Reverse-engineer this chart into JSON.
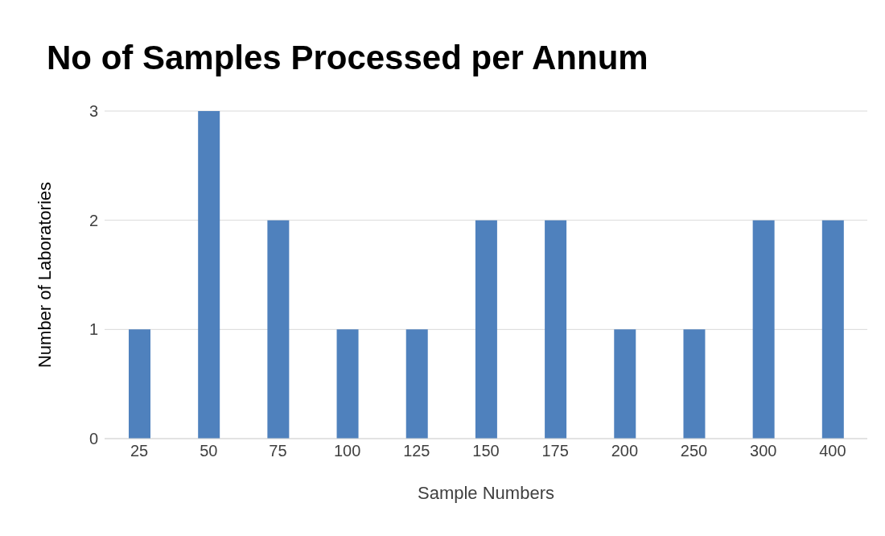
{
  "chart_data": {
    "type": "bar",
    "title": "No of Samples Processed per Annum",
    "xlabel": "Sample Numbers",
    "ylabel": "Number of Laboratories",
    "categories": [
      "25",
      "50",
      "75",
      "100",
      "125",
      "150",
      "175",
      "200",
      "250",
      "300",
      "400"
    ],
    "values": [
      1,
      3,
      2,
      1,
      1,
      2,
      2,
      1,
      1,
      2,
      2
    ],
    "color": "#4f81bd",
    "ylim": [
      0,
      3
    ],
    "yticks": [
      0,
      1,
      2,
      3
    ],
    "grid": "y"
  }
}
